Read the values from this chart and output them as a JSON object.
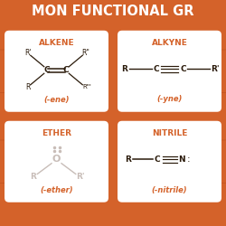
{
  "bg_color": "#d4622a",
  "orange": "#d4622a",
  "white": "#ffffff",
  "dark": "#2a1a0a",
  "card_color": "#ffffff",
  "header_text": "MON FUNCTIONAL GR",
  "alkene_title": "ALKENE",
  "alkyne_title": "ALKYNE",
  "ether_title": "ETHER",
  "nitrile_title": "NITRILE",
  "alkene_suffix": "(-ene)",
  "alkyne_suffix": "(-yne)",
  "ether_suffix": "(-ether)",
  "nitrile_suffix": "(-nitrile)",
  "ether_color": "#c8bdb8",
  "nitrile_color": "#2a1a0a"
}
